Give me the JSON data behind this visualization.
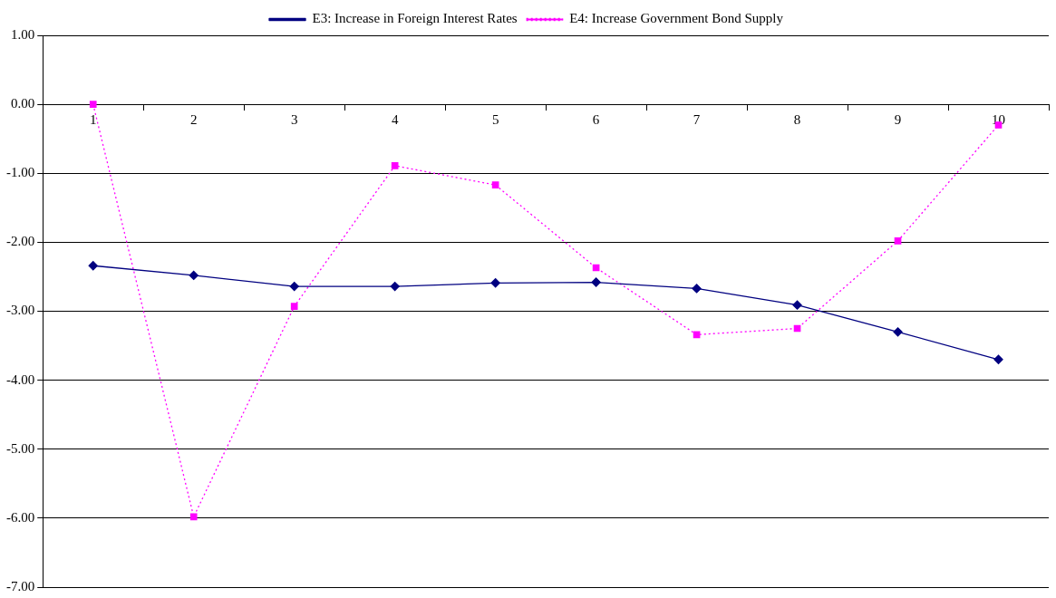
{
  "chart_data": {
    "type": "line",
    "categories": [
      "1",
      "2",
      "3",
      "4",
      "5",
      "6",
      "7",
      "8",
      "9",
      "10"
    ],
    "series": [
      {
        "name": "E3: Increase in Foreign Interest Rates",
        "color": "#000080",
        "marker": "diamond",
        "line_style": "solid",
        "values": [
          -2.34,
          -2.48,
          -2.64,
          -2.64,
          -2.59,
          -2.58,
          -2.67,
          -2.91,
          -3.3,
          -3.7
        ]
      },
      {
        "name": "E4: Increase Government Bond Supply",
        "color": "#ff00ff",
        "marker": "square",
        "line_style": "dotted",
        "values": [
          0,
          -5.98,
          -2.93,
          -0.89,
          -1.17,
          -2.37,
          -3.34,
          -3.25,
          -1.98,
          -0.3
        ]
      }
    ],
    "ylim": [
      -7,
      1
    ],
    "yticks": [
      {
        "value": -7,
        "label": "-7.00"
      },
      {
        "value": -6,
        "label": "-6.00"
      },
      {
        "value": -5,
        "label": "-5.00"
      },
      {
        "value": -4,
        "label": "-4.00"
      },
      {
        "value": -3,
        "label": "-3.00"
      },
      {
        "value": -2,
        "label": "-2.00"
      },
      {
        "value": -1,
        "label": "-1.00"
      },
      {
        "value": 0,
        "label": "0.00"
      },
      {
        "value": 1,
        "label": "1.00"
      }
    ],
    "grid": "y",
    "legend": "top"
  }
}
